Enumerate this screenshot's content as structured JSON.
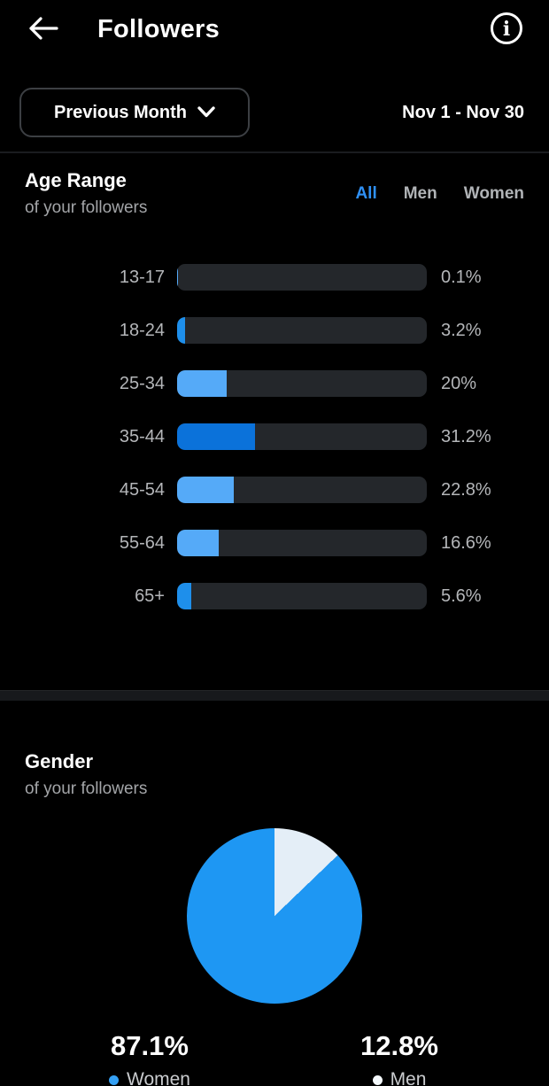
{
  "header": {
    "title": "Followers"
  },
  "filter": {
    "button_label": "Previous Month",
    "date_range": "Nov 1 - Nov 30"
  },
  "age_section": {
    "title": "Age Range",
    "subtitle": "of your followers",
    "tabs": [
      {
        "label": "All",
        "active": true
      },
      {
        "label": "Men",
        "active": false
      },
      {
        "label": "Women",
        "active": false
      }
    ]
  },
  "gender_section": {
    "title": "Gender",
    "subtitle": "of your followers",
    "stats": [
      {
        "value": "87.1%",
        "label": "Women",
        "dot_color": "#35a1f5"
      },
      {
        "value": "12.8%",
        "label": "Men",
        "dot_color": "#f5fafd"
      }
    ]
  },
  "chart_data": [
    {
      "type": "bar",
      "title": "Age Range of your followers",
      "orientation": "horizontal",
      "categories": [
        "13-17",
        "18-24",
        "25-34",
        "35-44",
        "45-54",
        "55-64",
        "65+"
      ],
      "values": [
        0.1,
        3.2,
        20,
        31.2,
        22.8,
        16.6,
        5.6
      ],
      "value_labels": [
        "0.1%",
        "3.2%",
        "20%",
        "31.2%",
        "22.8%",
        "16.6%",
        "5.6%"
      ],
      "xlim": [
        0,
        100
      ],
      "bar_colors": [
        "#55aaf8",
        "#1e8feb",
        "#55aaf8",
        "#0b72da",
        "#55aaf8",
        "#55aaf8",
        "#1e8feb"
      ],
      "track_color": "#24272b",
      "highlight_category": "35-44"
    },
    {
      "type": "pie",
      "title": "Gender of your followers",
      "categories": [
        "Women",
        "Men"
      ],
      "values": [
        87.1,
        12.8
      ],
      "colors": [
        "#1e97f3",
        "#e4eef7"
      ],
      "legend_position": "bottom"
    }
  ],
  "colors": {
    "background": "#000000",
    "accent_blue": "#2f90f5",
    "text_primary": "#ffffff",
    "text_secondary": "#a3a5a8",
    "divider": "#17191c"
  }
}
